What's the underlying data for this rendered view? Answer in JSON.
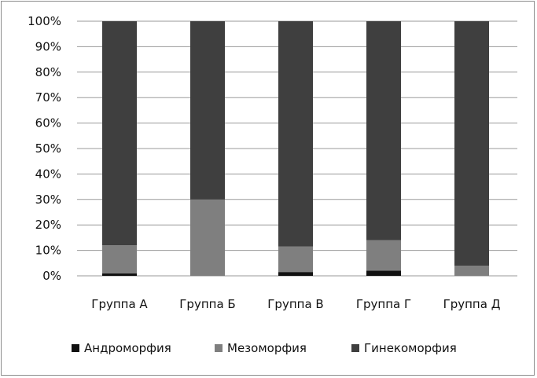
{
  "chart_data": {
    "type": "bar",
    "stacked": true,
    "categories": [
      "Группа А",
      "Группа Б",
      "Группа В",
      "Группа Г",
      "Группа Д"
    ],
    "series": [
      {
        "name": "Андроморфия",
        "values": [
          1,
          0,
          1.5,
          2,
          0
        ],
        "color": "#111111"
      },
      {
        "name": "Мезоморфия",
        "values": [
          11,
          30,
          10,
          12,
          4
        ],
        "color": "#7f7f7f"
      },
      {
        "name": "Гинекоморфия",
        "values": [
          88,
          70,
          88.5,
          86,
          96
        ],
        "color": "#3f3f3f"
      }
    ],
    "yticks": [
      "0%",
      "10%",
      "20%",
      "30%",
      "40%",
      "50%",
      "60%",
      "70%",
      "80%",
      "90%",
      "100%"
    ],
    "ylim": [
      0,
      100
    ],
    "grid": true,
    "legend": "bottom",
    "title": "",
    "xlabel": "",
    "ylabel": ""
  }
}
